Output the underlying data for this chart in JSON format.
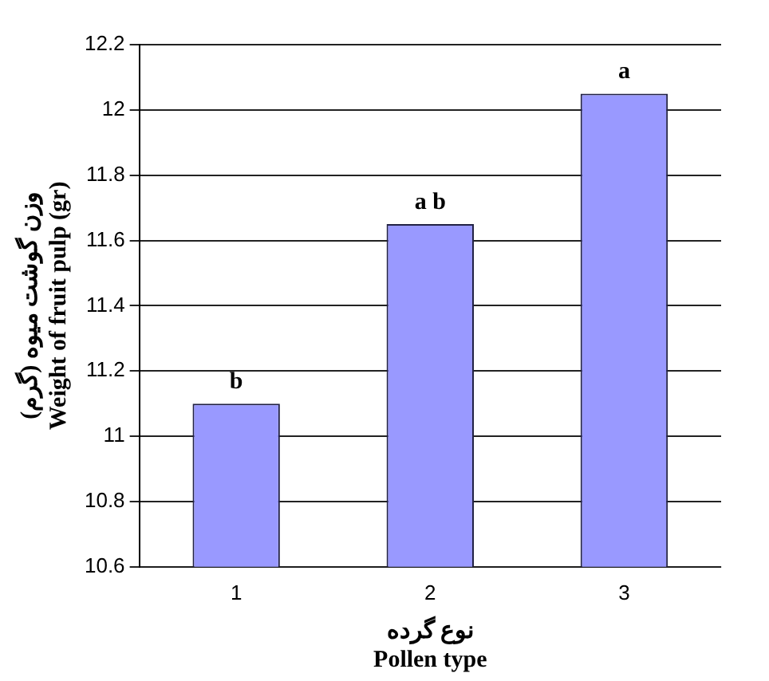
{
  "chart_data": {
    "type": "bar",
    "xlabel": "نوع گرده\nPollen type",
    "ylabel": "وزن گوشت میوه (گرم)\nWeight of fruit pulp (gr)",
    "categories": [
      "1",
      "2",
      "3"
    ],
    "values": [
      11.1,
      11.65,
      12.05
    ],
    "color": "#9999ff",
    "ylim": [
      10.6,
      12.2
    ],
    "yticks": [
      10.6,
      10.8,
      11,
      11.2,
      11.4,
      11.6,
      11.8,
      12,
      12.2
    ],
    "grid": "y",
    "annotations": [
      {
        "text": "b",
        "x": "1",
        "y": 11.1
      },
      {
        "text": "a b",
        "x": "2",
        "y": 11.65
      },
      {
        "text": "a",
        "x": "3",
        "y": 12.05
      }
    ]
  }
}
